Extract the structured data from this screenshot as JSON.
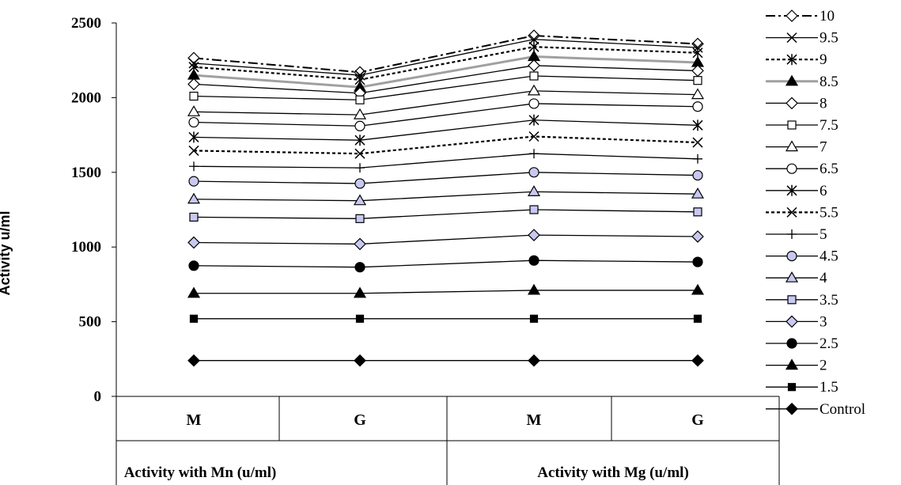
{
  "chart_data": {
    "type": "line",
    "ylabel": "Activity u/ml",
    "ylim": [
      0,
      2500
    ],
    "yticks": [
      "0",
      "500",
      "1000",
      "1500",
      "2000",
      "2500"
    ],
    "categories": [
      "M",
      "G",
      "M",
      "G"
    ],
    "groups": [
      "Activity with Mn (u/ml)",
      "Activity with Mg (u/ml)"
    ],
    "grid": false,
    "legend_position": "right",
    "series": [
      {
        "name": "10",
        "values": [
          2265,
          2170,
          2415,
          2360
        ],
        "marker": "diamond-open",
        "line": "dashdot",
        "color": "#000000"
      },
      {
        "name": "9.5",
        "values": [
          2230,
          2150,
          2390,
          2335
        ],
        "marker": "x",
        "line": "solid",
        "color": "#000000"
      },
      {
        "name": "9",
        "values": [
          2205,
          2120,
          2340,
          2300
        ],
        "marker": "asterisk",
        "line": "dotted",
        "color": "#000000"
      },
      {
        "name": "8.5",
        "values": [
          2150,
          2070,
          2275,
          2235
        ],
        "marker": "triangle-filled",
        "line": "grey",
        "color": "#999999"
      },
      {
        "name": "8",
        "values": [
          2090,
          2030,
          2215,
          2180
        ],
        "marker": "diamond-open",
        "line": "solid",
        "color": "#000000"
      },
      {
        "name": "7.5",
        "values": [
          2010,
          1985,
          2145,
          2115
        ],
        "marker": "square-open",
        "line": "solid",
        "color": "#000000"
      },
      {
        "name": "7",
        "values": [
          1905,
          1885,
          2045,
          2020
        ],
        "marker": "triangle-open",
        "line": "solid",
        "color": "#000000"
      },
      {
        "name": "6.5",
        "values": [
          1835,
          1810,
          1960,
          1940
        ],
        "marker": "circle-open",
        "line": "solid",
        "color": "#000000"
      },
      {
        "name": "6",
        "values": [
          1735,
          1715,
          1850,
          1815
        ],
        "marker": "asterisk",
        "line": "solid",
        "color": "#000000"
      },
      {
        "name": "5.5",
        "values": [
          1645,
          1625,
          1740,
          1700
        ],
        "marker": "x",
        "line": "dotted",
        "color": "#000000"
      },
      {
        "name": "5",
        "values": [
          1540,
          1530,
          1625,
          1590
        ],
        "marker": "plus",
        "line": "solid",
        "color": "#000000"
      },
      {
        "name": "4.5",
        "values": [
          1440,
          1425,
          1500,
          1480
        ],
        "marker": "circle-lav",
        "line": "solid",
        "color": "#000000"
      },
      {
        "name": "4",
        "values": [
          1320,
          1310,
          1370,
          1355
        ],
        "marker": "triangle-lav",
        "line": "solid",
        "color": "#000000"
      },
      {
        "name": "3.5",
        "values": [
          1200,
          1190,
          1250,
          1235
        ],
        "marker": "square-lav",
        "line": "solid",
        "color": "#000000"
      },
      {
        "name": "3",
        "values": [
          1030,
          1020,
          1080,
          1070
        ],
        "marker": "diamond-lav",
        "line": "solid",
        "color": "#000000"
      },
      {
        "name": "2.5",
        "values": [
          875,
          865,
          910,
          900
        ],
        "marker": "circle-filled",
        "line": "solid",
        "color": "#000000"
      },
      {
        "name": "2",
        "values": [
          690,
          690,
          710,
          710
        ],
        "marker": "triangle-filled",
        "line": "solid",
        "color": "#000000"
      },
      {
        "name": "1.5",
        "values": [
          520,
          520,
          520,
          520
        ],
        "marker": "square-filled",
        "line": "solid",
        "color": "#000000"
      },
      {
        "name": "Control",
        "values": [
          240,
          240,
          240,
          240
        ],
        "marker": "diamond-filled",
        "line": "solid",
        "color": "#000000"
      }
    ]
  }
}
